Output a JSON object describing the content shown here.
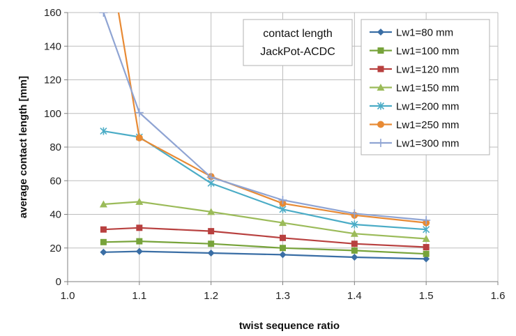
{
  "chart_data": {
    "type": "line",
    "title": "",
    "xlabel": "twist sequence ratio",
    "ylabel": "average contact length [mm]",
    "xlim": [
      1.0,
      1.6
    ],
    "ylim": [
      0,
      160
    ],
    "x_ticks": [
      "1.0",
      "1.1",
      "1.2",
      "1.3",
      "1.4",
      "1.5",
      "1.6"
    ],
    "y_ticks": [
      "0",
      "20",
      "40",
      "60",
      "80",
      "100",
      "120",
      "140",
      "160"
    ],
    "grid": true,
    "legend_position": "top-right",
    "annotation": [
      "contact length",
      "JackPot-ACDC"
    ],
    "x": [
      1.05,
      1.1,
      1.2,
      1.3,
      1.4,
      1.5
    ],
    "series": [
      {
        "name": "Lw1=80 mm",
        "marker": "diamond",
        "color": "#3a6ea5",
        "values": [
          17.5,
          18,
          17,
          16,
          14.5,
          13.5
        ]
      },
      {
        "name": "Lw1=100 mm",
        "marker": "square",
        "color": "#77a33a",
        "values": [
          23.5,
          24,
          22.5,
          20,
          18.5,
          16.5
        ]
      },
      {
        "name": "Lw1=120 mm",
        "marker": "square",
        "color": "#b8403f",
        "values": [
          31,
          32,
          30,
          26,
          22.5,
          20.5
        ]
      },
      {
        "name": "Lw1=150 mm",
        "marker": "triangle",
        "color": "#9bbb59",
        "values": [
          46,
          47.5,
          41.5,
          35,
          28.5,
          25.5
        ]
      },
      {
        "name": "Lw1=200 mm",
        "marker": "star",
        "color": "#4bacc6",
        "values": [
          89.5,
          86,
          58.5,
          43,
          34,
          31
        ]
      },
      {
        "name": "Lw1=250 mm",
        "marker": "circle",
        "color": "#e88a34",
        "values": [
          214,
          85.5,
          62.5,
          46.5,
          39.5,
          35
        ]
      },
      {
        "name": "Lw1=300 mm",
        "marker": "plus",
        "color": "#8fa4d3",
        "values": [
          160,
          100.5,
          62,
          48.5,
          40.5,
          36.5
        ]
      }
    ]
  }
}
